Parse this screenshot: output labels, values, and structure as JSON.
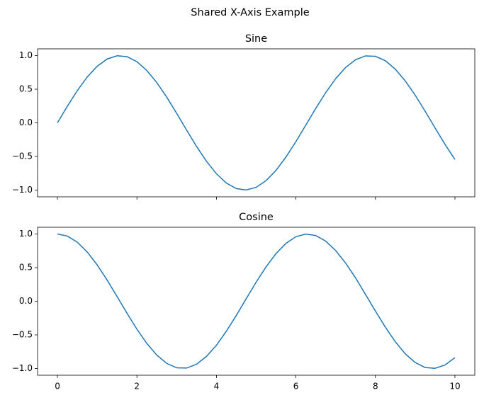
{
  "title": "Shared X-Axis Example",
  "sharex": true,
  "chart_data": [
    {
      "type": "line",
      "title": "Sine",
      "color": "#1f77b4",
      "x": [
        0,
        0.25,
        0.5,
        0.75,
        1,
        1.25,
        1.5,
        1.75,
        2,
        2.25,
        2.5,
        2.75,
        3,
        3.25,
        3.5,
        3.75,
        4,
        4.25,
        4.5,
        4.75,
        5,
        5.25,
        5.5,
        5.75,
        6,
        6.25,
        6.5,
        6.75,
        7,
        7.25,
        7.5,
        7.75,
        8,
        8.25,
        8.5,
        8.75,
        9,
        9.25,
        9.5,
        9.75,
        10
      ],
      "values": [
        0,
        0.247,
        0.479,
        0.682,
        0.841,
        0.949,
        0.997,
        0.984,
        0.909,
        0.778,
        0.598,
        0.382,
        0.141,
        -0.108,
        -0.351,
        -0.572,
        -0.757,
        -0.895,
        -0.978,
        -0.999,
        -0.959,
        -0.859,
        -0.706,
        -0.508,
        -0.279,
        -0.033,
        0.215,
        0.45,
        0.657,
        0.823,
        0.938,
        0.995,
        0.989,
        0.923,
        0.798,
        0.624,
        0.412,
        0.174,
        -0.075,
        -0.319,
        -0.544
      ],
      "xlim": [
        -0.5,
        10.5
      ],
      "ylim": [
        -1.1,
        1.1
      ],
      "yticks": [
        {
          "value": -1,
          "label": "−1.0"
        },
        {
          "value": -0.5,
          "label": "−0.5"
        },
        {
          "value": 0,
          "label": "0.0"
        },
        {
          "value": 0.5,
          "label": "0.5"
        },
        {
          "value": 1,
          "label": "1.0"
        }
      ]
    },
    {
      "type": "line",
      "title": "Cosine",
      "color": "#1f77b4",
      "x": [
        0,
        0.25,
        0.5,
        0.75,
        1,
        1.25,
        1.5,
        1.75,
        2,
        2.25,
        2.5,
        2.75,
        3,
        3.25,
        3.5,
        3.75,
        4,
        4.25,
        4.5,
        4.75,
        5,
        5.25,
        5.5,
        5.75,
        6,
        6.25,
        6.5,
        6.75,
        7,
        7.25,
        7.5,
        7.75,
        8,
        8.25,
        8.5,
        8.75,
        9,
        9.25,
        9.5,
        9.75,
        10
      ],
      "values": [
        1,
        0.969,
        0.878,
        0.732,
        0.54,
        0.315,
        0.071,
        -0.178,
        -0.416,
        -0.628,
        -0.801,
        -0.924,
        -0.99,
        -0.994,
        -0.936,
        -0.82,
        -0.654,
        -0.446,
        -0.211,
        0.038,
        0.284,
        0.512,
        0.709,
        0.861,
        0.96,
        0.999,
        0.977,
        0.893,
        0.754,
        0.568,
        0.347,
        0.102,
        -0.146,
        -0.385,
        -0.602,
        -0.781,
        -0.911,
        -0.985,
        -0.997,
        -0.948,
        -0.839
      ],
      "xlim": [
        -0.5,
        10.5
      ],
      "ylim": [
        -1.1,
        1.1
      ],
      "xticks": [
        0,
        2,
        4,
        6,
        8,
        10
      ],
      "yticks": [
        {
          "value": -1,
          "label": "−1.0"
        },
        {
          "value": -0.5,
          "label": "−0.5"
        },
        {
          "value": 0,
          "label": "0.0"
        },
        {
          "value": 0.5,
          "label": "0.5"
        },
        {
          "value": 1,
          "label": "1.0"
        }
      ]
    }
  ]
}
